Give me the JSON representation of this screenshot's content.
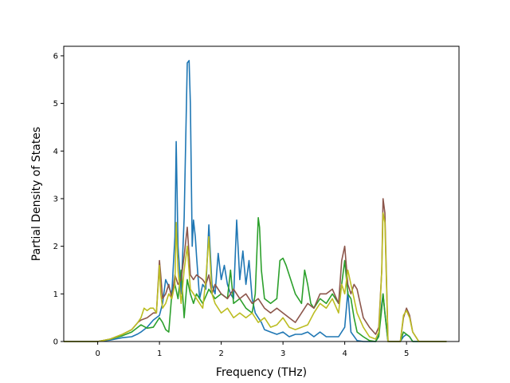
{
  "chart_data": {
    "type": "line",
    "xlabel": "Frequency (THz)",
    "ylabel": "Partial Density of States",
    "xlim": [
      -0.55,
      5.85
    ],
    "ylim": [
      0,
      6.2
    ],
    "xticks": [
      0,
      1,
      2,
      3,
      4,
      5
    ],
    "yticks": [
      0,
      1,
      2,
      3,
      4,
      5,
      6
    ],
    "grid": false,
    "series": [
      {
        "color": "#1f77b4",
        "x": [
          -0.55,
          0,
          0.2,
          0.4,
          0.55,
          0.65,
          0.7,
          0.8,
          0.9,
          1.0,
          1.05,
          1.1,
          1.2,
          1.25,
          1.27,
          1.3,
          1.35,
          1.4,
          1.45,
          1.48,
          1.5,
          1.53,
          1.55,
          1.58,
          1.6,
          1.65,
          1.7,
          1.75,
          1.8,
          1.85,
          1.9,
          1.95,
          2.0,
          2.05,
          2.1,
          2.15,
          2.2,
          2.25,
          2.3,
          2.35,
          2.4,
          2.45,
          2.5,
          2.55,
          2.6,
          2.65,
          2.7,
          2.8,
          2.9,
          3.0,
          3.1,
          3.2,
          3.3,
          3.4,
          3.5,
          3.6,
          3.7,
          3.8,
          3.9,
          4.0,
          4.05,
          4.1,
          4.2,
          4.3,
          4.4,
          4.5,
          4.55,
          4.6,
          4.62,
          4.65,
          4.7,
          4.8,
          4.9,
          4.95,
          5.0,
          5.05,
          5.1,
          5.2,
          5.4,
          5.65
        ],
        "y": [
          0,
          0,
          0.03,
          0.08,
          0.1,
          0.16,
          0.2,
          0.3,
          0.45,
          0.55,
          0.8,
          1.3,
          1.0,
          2.2,
          4.2,
          2.0,
          1.0,
          2.6,
          5.85,
          5.9,
          5.0,
          2.0,
          2.55,
          2.2,
          1.8,
          0.9,
          1.2,
          1.1,
          2.45,
          1.2,
          1.0,
          1.85,
          1.3,
          1.6,
          1.2,
          1.0,
          0.9,
          2.55,
          1.3,
          1.9,
          1.2,
          1.7,
          0.9,
          0.6,
          0.5,
          0.4,
          0.25,
          0.2,
          0.15,
          0.2,
          0.1,
          0.15,
          0.15,
          0.2,
          0.1,
          0.2,
          0.1,
          0.1,
          0.1,
          0.3,
          1.05,
          0.2,
          0.02,
          0.0,
          0.0,
          0.0,
          0.15,
          0.8,
          1.0,
          0.6,
          0.0,
          0.0,
          0.0,
          0.1,
          0.15,
          0.1,
          0.0,
          0.0,
          0.0,
          0.0
        ]
      },
      {
        "color": "#2ca02c",
        "x": [
          -0.55,
          0,
          0.2,
          0.4,
          0.55,
          0.65,
          0.7,
          0.8,
          0.9,
          1.0,
          1.05,
          1.1,
          1.15,
          1.2,
          1.25,
          1.3,
          1.35,
          1.4,
          1.45,
          1.5,
          1.55,
          1.6,
          1.7,
          1.8,
          1.9,
          2.0,
          2.1,
          2.15,
          2.2,
          2.3,
          2.4,
          2.5,
          2.55,
          2.6,
          2.62,
          2.65,
          2.7,
          2.8,
          2.9,
          2.95,
          3.0,
          3.05,
          3.1,
          3.2,
          3.3,
          3.35,
          3.4,
          3.45,
          3.5,
          3.6,
          3.7,
          3.8,
          3.9,
          3.95,
          4.0,
          4.05,
          4.1,
          4.15,
          4.2,
          4.3,
          4.4,
          4.5,
          4.55,
          4.6,
          4.62,
          4.65,
          4.7,
          4.8,
          4.9,
          4.95,
          5.0,
          5.05,
          5.1,
          5.2,
          5.4,
          5.65
        ],
        "y": [
          0,
          0,
          0.05,
          0.12,
          0.2,
          0.3,
          0.35,
          0.28,
          0.3,
          0.5,
          0.4,
          0.25,
          0.2,
          1.0,
          1.2,
          0.9,
          1.5,
          0.5,
          1.3,
          1.0,
          0.8,
          1.0,
          0.8,
          1.1,
          0.9,
          1.0,
          0.9,
          1.5,
          0.8,
          0.9,
          0.7,
          0.6,
          1.0,
          2.6,
          2.4,
          1.5,
          0.9,
          0.8,
          0.9,
          1.7,
          1.75,
          1.6,
          1.4,
          1.0,
          0.8,
          1.5,
          1.2,
          0.8,
          0.7,
          0.9,
          0.8,
          1.0,
          0.8,
          1.2,
          1.7,
          1.0,
          0.9,
          0.5,
          0.2,
          0.1,
          0.02,
          0.0,
          0.1,
          0.7,
          1.0,
          0.6,
          0.0,
          0.0,
          0.0,
          0.2,
          0.15,
          0.1,
          0.0,
          0.0,
          0.0,
          0.0
        ]
      },
      {
        "color": "#8c564b",
        "x": [
          -0.55,
          0,
          0.2,
          0.4,
          0.55,
          0.65,
          0.7,
          0.8,
          0.9,
          0.95,
          1.0,
          1.02,
          1.05,
          1.1,
          1.15,
          1.2,
          1.25,
          1.3,
          1.35,
          1.4,
          1.45,
          1.5,
          1.55,
          1.6,
          1.7,
          1.75,
          1.8,
          1.85,
          1.9,
          2.0,
          2.1,
          2.2,
          2.3,
          2.4,
          2.5,
          2.6,
          2.7,
          2.8,
          2.9,
          3.0,
          3.1,
          3.2,
          3.3,
          3.4,
          3.5,
          3.6,
          3.7,
          3.8,
          3.9,
          3.95,
          4.0,
          4.05,
          4.1,
          4.15,
          4.2,
          4.3,
          4.4,
          4.5,
          4.55,
          4.6,
          4.62,
          4.65,
          4.7,
          4.8,
          4.9,
          4.95,
          5.0,
          5.05,
          5.1,
          5.2,
          5.4,
          5.65
        ],
        "y": [
          0,
          0,
          0.05,
          0.15,
          0.25,
          0.4,
          0.45,
          0.5,
          0.6,
          0.6,
          1.7,
          1.4,
          0.9,
          1.0,
          1.2,
          0.9,
          1.4,
          1.2,
          1.3,
          1.8,
          2.4,
          1.4,
          1.3,
          1.4,
          1.3,
          1.2,
          1.4,
          1.0,
          1.2,
          1.0,
          0.9,
          1.1,
          0.9,
          1.0,
          0.8,
          0.9,
          0.7,
          0.6,
          0.7,
          0.6,
          0.5,
          0.4,
          0.6,
          0.8,
          0.7,
          1.0,
          1.0,
          1.1,
          0.8,
          1.7,
          2.0,
          1.2,
          1.0,
          1.2,
          1.1,
          0.5,
          0.3,
          0.15,
          0.3,
          1.5,
          3.0,
          2.7,
          0.0,
          0.0,
          0.0,
          0.5,
          0.7,
          0.55,
          0.2,
          0.0,
          0.0,
          0.0
        ]
      },
      {
        "color": "#bcbd22",
        "x": [
          -0.55,
          0,
          0.2,
          0.4,
          0.55,
          0.65,
          0.7,
          0.75,
          0.8,
          0.85,
          0.9,
          0.95,
          1.0,
          1.02,
          1.05,
          1.1,
          1.15,
          1.2,
          1.25,
          1.27,
          1.3,
          1.35,
          1.4,
          1.45,
          1.5,
          1.55,
          1.6,
          1.7,
          1.75,
          1.8,
          1.85,
          1.9,
          2.0,
          2.1,
          2.2,
          2.3,
          2.4,
          2.5,
          2.6,
          2.7,
          2.8,
          2.9,
          3.0,
          3.1,
          3.2,
          3.3,
          3.4,
          3.5,
          3.6,
          3.7,
          3.8,
          3.9,
          3.95,
          4.0,
          4.05,
          4.1,
          4.15,
          4.2,
          4.3,
          4.4,
          4.5,
          4.55,
          4.6,
          4.62,
          4.65,
          4.7,
          4.8,
          4.9,
          4.95,
          5.0,
          5.05,
          5.1,
          5.2,
          5.4,
          5.65
        ],
        "y": [
          0,
          0,
          0.05,
          0.15,
          0.25,
          0.4,
          0.5,
          0.7,
          0.65,
          0.7,
          0.7,
          0.6,
          1.6,
          1.0,
          0.7,
          0.8,
          1.0,
          0.9,
          1.2,
          2.5,
          1.5,
          0.8,
          1.5,
          2.0,
          1.1,
          1.0,
          0.9,
          0.7,
          1.3,
          2.2,
          1.0,
          0.8,
          0.6,
          0.7,
          0.5,
          0.6,
          0.5,
          0.6,
          0.4,
          0.5,
          0.3,
          0.35,
          0.5,
          0.3,
          0.25,
          0.3,
          0.35,
          0.6,
          0.8,
          0.7,
          0.9,
          0.6,
          1.2,
          1.0,
          1.5,
          1.2,
          0.9,
          0.6,
          0.3,
          0.1,
          0.05,
          0.2,
          1.5,
          2.7,
          2.5,
          0.0,
          0.0,
          0.0,
          0.55,
          0.65,
          0.5,
          0.2,
          0.0,
          0.0,
          0.0
        ]
      }
    ]
  }
}
